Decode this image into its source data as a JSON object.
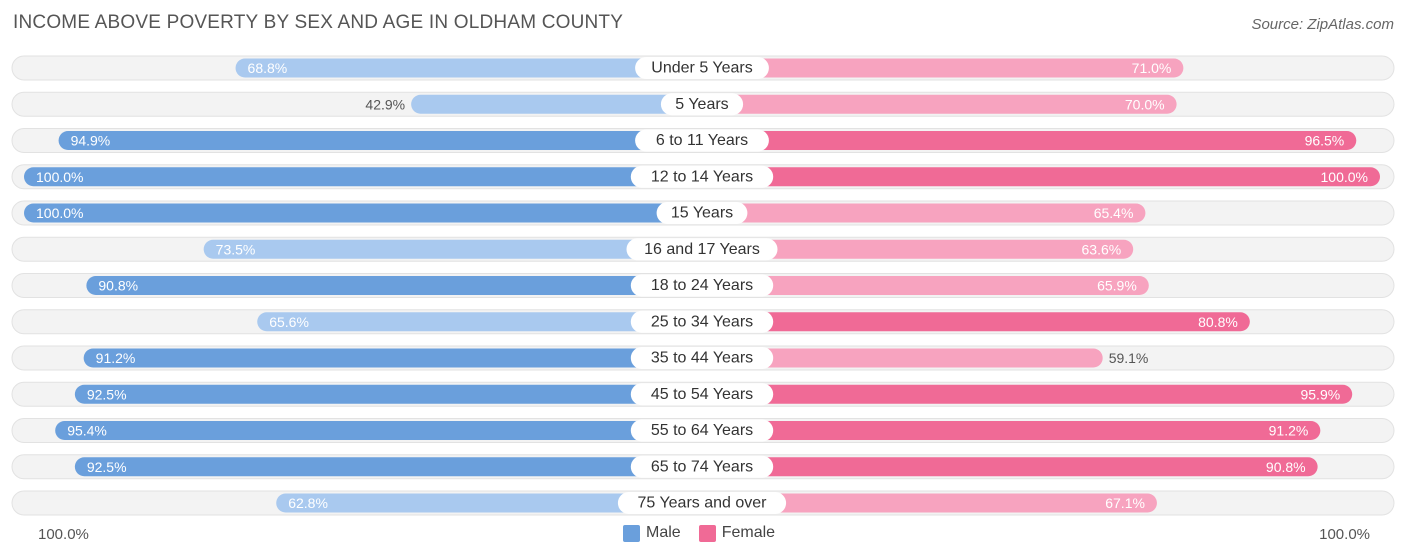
{
  "title": "INCOME ABOVE POVERTY BY SEX AND AGE IN OLDHAM COUNTY",
  "source": "Source: ZipAtlas.com",
  "axis": {
    "left_label": "100.0%",
    "right_label": "100.0%"
  },
  "legend": [
    {
      "label": "Male",
      "color": "#6a9fdc"
    },
    {
      "label": "Female",
      "color": "#f06a96"
    }
  ],
  "colors": {
    "male_strong": "#6a9fdc",
    "male_light": "#a9c9ef",
    "female_strong": "#f06a96",
    "female_light": "#f7a3bf",
    "track": "#eeeeee"
  },
  "chart_data": {
    "type": "bar",
    "orientation": "horizontal-diverging",
    "title": "INCOME ABOVE POVERTY BY SEX AND AGE IN OLDHAM COUNTY",
    "xlim": [
      0,
      100
    ],
    "unit": "%",
    "categories": [
      "Under 5 Years",
      "5 Years",
      "6 to 11 Years",
      "12 to 14 Years",
      "15 Years",
      "16 and 17 Years",
      "18 to 24 Years",
      "25 to 34 Years",
      "35 to 44 Years",
      "45 to 54 Years",
      "55 to 64 Years",
      "65 to 74 Years",
      "75 Years and over"
    ],
    "series": [
      {
        "name": "Male",
        "values": [
          68.8,
          42.9,
          94.9,
          100.0,
          100.0,
          73.5,
          90.8,
          65.6,
          91.2,
          92.5,
          95.4,
          92.5,
          62.8
        ],
        "labels": [
          "68.8%",
          "42.9%",
          "94.9%",
          "100.0%",
          "100.0%",
          "73.5%",
          "90.8%",
          "65.6%",
          "91.2%",
          "92.5%",
          "95.4%",
          "92.5%",
          "62.8%"
        ]
      },
      {
        "name": "Female",
        "values": [
          71.0,
          70.0,
          96.5,
          100.0,
          65.4,
          63.6,
          65.9,
          80.8,
          59.1,
          95.9,
          91.2,
          90.8,
          67.1
        ],
        "labels": [
          "71.0%",
          "70.0%",
          "96.5%",
          "100.0%",
          "65.4%",
          "63.6%",
          "65.9%",
          "80.8%",
          "59.1%",
          "95.9%",
          "91.2%",
          "90.8%",
          "67.1%"
        ]
      }
    ]
  }
}
